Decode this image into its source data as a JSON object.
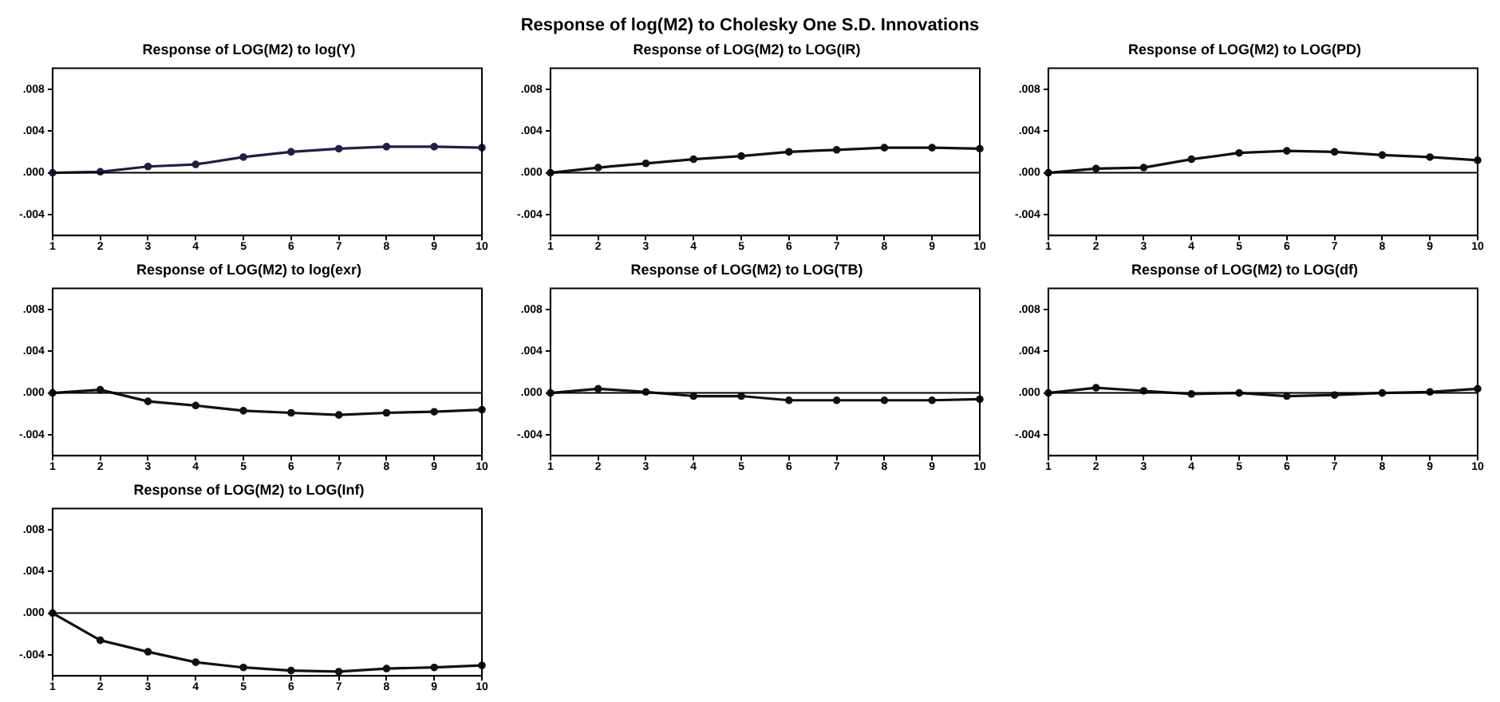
{
  "chart_data": [
    {
      "type": "line",
      "title": "Response of LOG(M2) to log(Y)",
      "annotations": [
        "Response of log(M2) to Cholesky One S.D. Innovations"
      ],
      "categories": [
        "1",
        "2",
        "3",
        "4",
        "5",
        "6",
        "7",
        "8",
        "9",
        "10"
      ],
      "series": [
        {
          "color": "#1f1f4a",
          "values": [
            0,
            0.0001,
            0.0006,
            0.0008,
            0.0015,
            0.002,
            0.0023,
            0.0025,
            0.0025,
            0.0024
          ]
        }
      ],
      "ylim": [
        -0.006,
        0.01
      ],
      "yticks": [
        {
          "value": -0.004,
          "label": "-.004"
        },
        {
          "value": 0,
          "label": ".000"
        },
        {
          "value": 0.004,
          "label": ".004"
        },
        {
          "value": 0.008,
          "label": ".008"
        }
      ],
      "ref_lines": [
        {
          "axis": "y",
          "value": 0
        }
      ],
      "marker": "circle"
    },
    {
      "type": "line",
      "title": "Response of LOG(M2) to LOG(IR)",
      "categories": [
        "1",
        "2",
        "3",
        "4",
        "5",
        "6",
        "7",
        "8",
        "9",
        "10"
      ],
      "series": [
        {
          "color": "#111111",
          "values": [
            0,
            0.0005,
            0.0009,
            0.0013,
            0.0016,
            0.002,
            0.0022,
            0.0024,
            0.0024,
            0.0023
          ]
        }
      ],
      "ylim": [
        -0.006,
        0.01
      ],
      "yticks": [
        {
          "value": -0.004,
          "label": "-.004"
        },
        {
          "value": 0,
          "label": ".000"
        },
        {
          "value": 0.004,
          "label": ".004"
        },
        {
          "value": 0.008,
          "label": ".008"
        }
      ],
      "ref_lines": [
        {
          "axis": "y",
          "value": 0
        }
      ],
      "marker": "circle"
    },
    {
      "type": "line",
      "title": "Response of LOG(M2) to LOG(PD)",
      "categories": [
        "1",
        "2",
        "3",
        "4",
        "5",
        "6",
        "7",
        "8",
        "9",
        "10"
      ],
      "series": [
        {
          "color": "#111111",
          "values": [
            0,
            0.0004,
            0.0005,
            0.0013,
            0.0019,
            0.0021,
            0.002,
            0.0017,
            0.0015,
            0.0012
          ]
        }
      ],
      "ylim": [
        -0.006,
        0.01
      ],
      "yticks": [
        {
          "value": -0.004,
          "label": "-.004"
        },
        {
          "value": 0,
          "label": ".000"
        },
        {
          "value": 0.004,
          "label": ".004"
        },
        {
          "value": 0.008,
          "label": ".008"
        }
      ],
      "ref_lines": [
        {
          "axis": "y",
          "value": 0
        }
      ],
      "marker": "circle"
    },
    {
      "type": "line",
      "title": "Response of LOG(M2) to log(exr)",
      "categories": [
        "1",
        "2",
        "3",
        "4",
        "5",
        "6",
        "7",
        "8",
        "9",
        "10"
      ],
      "series": [
        {
          "color": "#111111",
          "values": [
            0,
            0.0003,
            -0.0008,
            -0.0012,
            -0.0017,
            -0.0019,
            -0.0021,
            -0.0019,
            -0.0018,
            -0.0016
          ]
        }
      ],
      "ylim": [
        -0.006,
        0.01
      ],
      "yticks": [
        {
          "value": -0.004,
          "label": "-.004"
        },
        {
          "value": 0,
          "label": ".000"
        },
        {
          "value": 0.004,
          "label": ".004"
        },
        {
          "value": 0.008,
          "label": ".008"
        }
      ],
      "ref_lines": [
        {
          "axis": "y",
          "value": 0
        }
      ],
      "marker": "circle"
    },
    {
      "type": "line",
      "title": "Response of LOG(M2) to LOG(TB)",
      "categories": [
        "1",
        "2",
        "3",
        "4",
        "5",
        "6",
        "7",
        "8",
        "9",
        "10"
      ],
      "series": [
        {
          "color": "#111111",
          "values": [
            0,
            0.0004,
            0.0001,
            -0.0003,
            -0.0003,
            -0.0007,
            -0.0007,
            -0.0007,
            -0.0007,
            -0.0006
          ]
        }
      ],
      "ylim": [
        -0.006,
        0.01
      ],
      "yticks": [
        {
          "value": -0.004,
          "label": "-.004"
        },
        {
          "value": 0,
          "label": ".000"
        },
        {
          "value": 0.004,
          "label": ".004"
        },
        {
          "value": 0.008,
          "label": ".008"
        }
      ],
      "ref_lines": [
        {
          "axis": "y",
          "value": 0
        }
      ],
      "marker": "circle"
    },
    {
      "type": "line",
      "title": "Response of LOG(M2) to LOG(df)",
      "categories": [
        "1",
        "2",
        "3",
        "4",
        "5",
        "6",
        "7",
        "8",
        "9",
        "10"
      ],
      "series": [
        {
          "color": "#111111",
          "values": [
            0,
            0.0005,
            0.0002,
            -0.0001,
            0,
            -0.0003,
            -0.0002,
            0,
            0.0001,
            0.0004
          ]
        }
      ],
      "ylim": [
        -0.006,
        0.01
      ],
      "yticks": [
        {
          "value": -0.004,
          "label": "-.004"
        },
        {
          "value": 0,
          "label": ".000"
        },
        {
          "value": 0.004,
          "label": ".004"
        },
        {
          "value": 0.008,
          "label": ".008"
        }
      ],
      "ref_lines": [
        {
          "axis": "y",
          "value": 0
        }
      ],
      "marker": "circle"
    },
    {
      "type": "line",
      "title": "Response of LOG(M2) to LOG(Inf)",
      "categories": [
        "1",
        "2",
        "3",
        "4",
        "5",
        "6",
        "7",
        "8",
        "9",
        "10"
      ],
      "series": [
        {
          "color": "#111111",
          "values": [
            0,
            -0.0026,
            -0.0037,
            -0.0047,
            -0.0052,
            -0.0055,
            -0.0056,
            -0.0053,
            -0.0052,
            -0.005
          ]
        }
      ],
      "ylim": [
        -0.006,
        0.01
      ],
      "yticks": [
        {
          "value": -0.004,
          "label": "-.004"
        },
        {
          "value": 0,
          "label": ".000"
        },
        {
          "value": 0.004,
          "label": ".004"
        },
        {
          "value": 0.008,
          "label": ".008"
        }
      ],
      "ref_lines": [
        {
          "axis": "y",
          "value": 0
        }
      ],
      "marker": "circle"
    }
  ]
}
